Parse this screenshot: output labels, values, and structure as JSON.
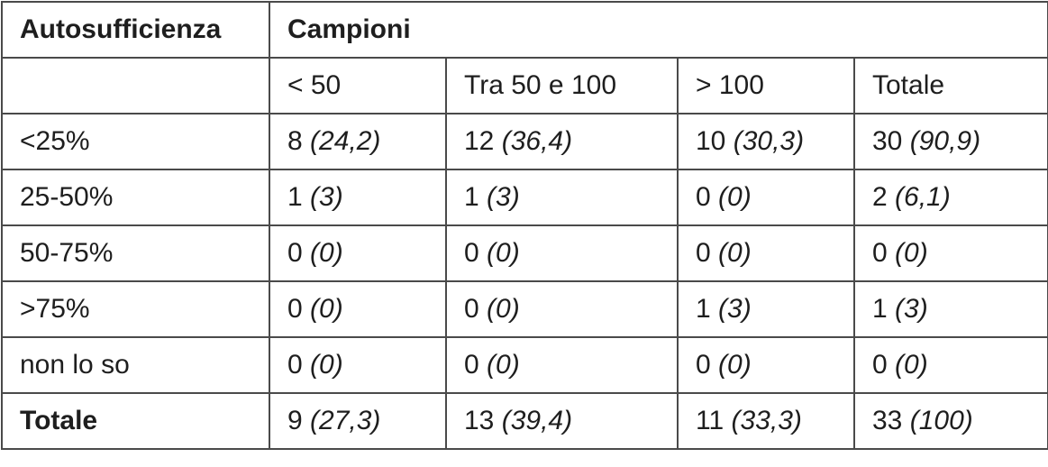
{
  "table": {
    "header": {
      "row_label": "Autosufficienza",
      "group": "Campioni"
    },
    "columns": [
      "< 50",
      "Tra 50 e 100",
      "> 100",
      "Totale"
    ],
    "rows": [
      {
        "label": "<25%",
        "cells": [
          {
            "n": "8",
            "p": "(24,2)"
          },
          {
            "n": "12",
            "p": "(36,4)"
          },
          {
            "n": "10",
            "p": "(30,3)"
          },
          {
            "n": "30",
            "p": "(90,9)"
          }
        ]
      },
      {
        "label": "25-50%",
        "cells": [
          {
            "n": "1",
            "p": "(3)"
          },
          {
            "n": "1",
            "p": "(3)"
          },
          {
            "n": "0",
            "p": "(0)"
          },
          {
            "n": "2",
            "p": "(6,1)"
          }
        ]
      },
      {
        "label": "50-75%",
        "cells": [
          {
            "n": "0",
            "p": "(0)"
          },
          {
            "n": "0",
            "p": "(0)"
          },
          {
            "n": "0",
            "p": "(0)"
          },
          {
            "n": "0",
            "p": "(0)"
          }
        ]
      },
      {
        "label": ">75%",
        "cells": [
          {
            "n": "0",
            "p": "(0)"
          },
          {
            "n": "0",
            "p": "(0)"
          },
          {
            "n": "1",
            "p": "(3)"
          },
          {
            "n": "1",
            "p": "(3)"
          }
        ]
      },
      {
        "label": "non lo so",
        "cells": [
          {
            "n": "0",
            "p": "(0)"
          },
          {
            "n": "0",
            "p": "(0)"
          },
          {
            "n": "0",
            "p": "(0)"
          },
          {
            "n": "0",
            "p": "(0)"
          }
        ]
      },
      {
        "label": "Totale",
        "cells": [
          {
            "n": "9",
            "p": "(27,3)"
          },
          {
            "n": "13",
            "p": "(39,4)"
          },
          {
            "n": "11",
            "p": "(33,3)"
          },
          {
            "n": "33",
            "p": "(100)"
          }
        ]
      }
    ]
  }
}
